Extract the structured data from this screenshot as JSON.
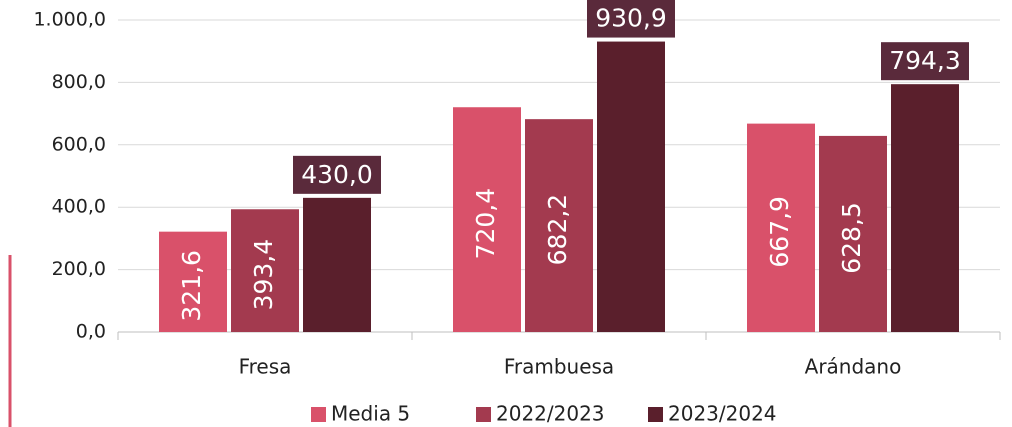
{
  "chart_data": {
    "type": "bar",
    "categories": [
      "Fresa",
      "Frambuesa",
      "Arándano"
    ],
    "series": [
      {
        "name": "Media 5",
        "color": "#d9516a",
        "values": [
          321.6,
          720.4,
          667.9
        ],
        "value_labels": [
          "321,6",
          "720,4",
          "667,9"
        ]
      },
      {
        "name": "2022/2023",
        "color": "#a33a4f",
        "values": [
          393.4,
          682.2,
          628.5
        ],
        "value_labels": [
          "393,4",
          "682,2",
          "628,5"
        ]
      },
      {
        "name": "2023/2024",
        "color": "#5a1f2c",
        "values": [
          430.0,
          930.9,
          794.3
        ],
        "value_labels": [
          "430,0",
          "930,9",
          "794,3"
        ]
      }
    ],
    "ylim": [
      0,
      1000
    ],
    "yticks": [
      {
        "value": 0,
        "label": "0,0"
      },
      {
        "value": 200,
        "label": "200,0"
      },
      {
        "value": 400,
        "label": "400,0"
      },
      {
        "value": 600,
        "label": "600,0"
      },
      {
        "value": 800,
        "label": "800,0"
      },
      {
        "value": 1000,
        "label": "1.000,0"
      }
    ],
    "legend": "bottom"
  }
}
